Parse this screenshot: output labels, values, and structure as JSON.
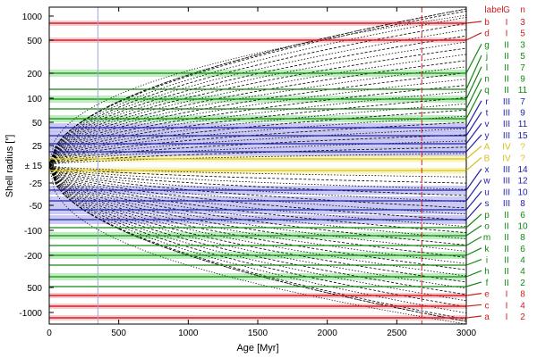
{
  "chart_data": {
    "type": "line",
    "xlabel": "Age [Myr]",
    "ylabel": "Shell radius [″]",
    "xlim": [
      0,
      3000
    ],
    "x_ticks": [
      0,
      500,
      1000,
      1500,
      2000,
      2500,
      3000
    ],
    "y_tick_labels": [
      "1000",
      "500",
      "200",
      "100",
      "50",
      "25",
      "± 15",
      "-25",
      "-50",
      "-100",
      "-200",
      "500",
      "-1000"
    ],
    "reference_lines": {
      "vertical_gray_x": 350,
      "vertical_red_x": 2680
    },
    "legend_header": {
      "label": "label",
      "g": "G",
      "n": "n"
    },
    "colors": {
      "I": "#cc2222",
      "II": "#118811",
      "III": "#2222aa",
      "IV": "#d8c020"
    },
    "band_colors": {
      "I": "#f8b8c0",
      "II": "#a8e8a8",
      "III": "#b8b8f0",
      "IV": "#f5f0a0"
    },
    "shells": [
      {
        "label": "b",
        "group": "I",
        "n": "3"
      },
      {
        "label": "d",
        "group": "I",
        "n": "5"
      },
      {
        "label": "g",
        "group": "II",
        "n": "3"
      },
      {
        "label": "j",
        "group": "II",
        "n": "5"
      },
      {
        "label": "l",
        "group": "II",
        "n": "7"
      },
      {
        "label": "n",
        "group": "II",
        "n": "9"
      },
      {
        "label": "q",
        "group": "II",
        "n": "11"
      },
      {
        "label": "r",
        "group": "III",
        "n": "7"
      },
      {
        "label": "t",
        "group": "III",
        "n": "9"
      },
      {
        "label": "v",
        "group": "III",
        "n": "11"
      },
      {
        "label": "y",
        "group": "III",
        "n": "15"
      },
      {
        "label": "A",
        "group": "IV",
        "n": "?"
      },
      {
        "label": "B",
        "group": "IV",
        "n": "?"
      },
      {
        "label": "x",
        "group": "III",
        "n": "14"
      },
      {
        "label": "w",
        "group": "III",
        "n": "12"
      },
      {
        "label": "u",
        "group": "III",
        "n": "10"
      },
      {
        "label": "s",
        "group": "III",
        "n": "8"
      },
      {
        "label": "p",
        "group": "II",
        "n": "6"
      },
      {
        "label": "o",
        "group": "II",
        "n": "10"
      },
      {
        "label": "m",
        "group": "II",
        "n": "8"
      },
      {
        "label": "k",
        "group": "II",
        "n": "6"
      },
      {
        "label": "i",
        "group": "II",
        "n": "4"
      },
      {
        "label": "h",
        "group": "II",
        "n": "4"
      },
      {
        "label": "f",
        "group": "II",
        "n": "2"
      },
      {
        "label": "e",
        "group": "I",
        "n": "8"
      },
      {
        "label": "c",
        "group": "I",
        "n": "4"
      },
      {
        "label": "a",
        "group": "I",
        "n": "2"
      }
    ]
  }
}
